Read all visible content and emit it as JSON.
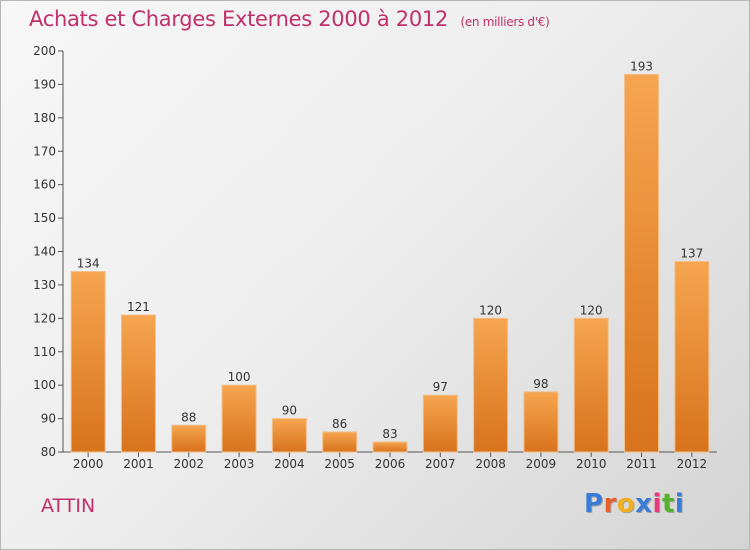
{
  "header": {
    "title": "Achats et Charges Externes 2000 à 2012",
    "subtitle": "(en milliers d'€)"
  },
  "footer": {
    "commune": "ATTIN",
    "logo_text": "Proxiti",
    "logo_colors": [
      "#3a7bd5",
      "#e8602c",
      "#f0b020",
      "#3a7bd5",
      "#e83a7a",
      "#58b030",
      "#3a7bd5"
    ]
  },
  "colors": {
    "bar_top": "#f6a550",
    "bar_bottom": "#d8731c",
    "accent": "#c0306a"
  },
  "chart_data": {
    "type": "bar",
    "categories": [
      "2000",
      "2001",
      "2002",
      "2003",
      "2004",
      "2005",
      "2006",
      "2007",
      "2008",
      "2009",
      "2010",
      "2011",
      "2012"
    ],
    "values": [
      134,
      121,
      88,
      100,
      90,
      86,
      83,
      97,
      120,
      98,
      120,
      193,
      137
    ],
    "title": "Achats et Charges Externes 2000 à 2012",
    "xlabel": "",
    "ylabel": "",
    "ylim": [
      80,
      200
    ],
    "yticks": [
      80,
      90,
      100,
      110,
      120,
      130,
      140,
      150,
      160,
      170,
      180,
      190,
      200
    ],
    "grid": false,
    "data_labels": true
  }
}
